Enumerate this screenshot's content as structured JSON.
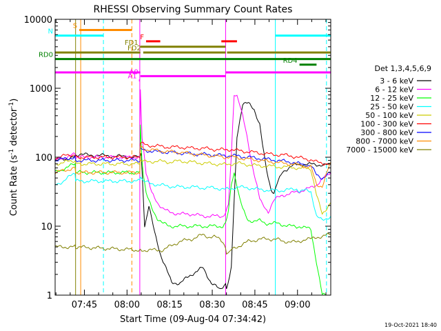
{
  "chart_data": {
    "type": "line",
    "title": "RHESSI Observing Summary Count Rates",
    "xlabel": "Start Time (09-Aug-04 07:34:42)",
    "ylabel_main": "Count Rate (s",
    "ylabel_exp1": "-1",
    "ylabel_mid": " detector",
    "ylabel_exp2": "-1",
    "ylabel_end": ")",
    "x_unit": "minutes after 07:34:42",
    "xlim": [
      0,
      97
    ],
    "ylim": [
      1,
      10000
    ],
    "y_scale": "log",
    "x_ticks": [
      {
        "x": 10.3,
        "label": "07:45"
      },
      {
        "x": 25.3,
        "label": "08:00"
      },
      {
        "x": 40.3,
        "label": "08:15"
      },
      {
        "x": 55.3,
        "label": "08:30"
      },
      {
        "x": 70.3,
        "label": "08:45"
      },
      {
        "x": 85.3,
        "label": "09:00"
      }
    ],
    "y_ticks": [
      {
        "y": 1,
        "label": "1"
      },
      {
        "y": 10,
        "label": "10"
      },
      {
        "y": 100,
        "label": "100"
      },
      {
        "y": 1000,
        "label": "1000"
      },
      {
        "y": 10000,
        "label": "10000"
      }
    ],
    "legend_title": "Det 1,3,4,5,6,9",
    "legend_placement": "right",
    "series": [
      {
        "name": "3 - 6 keV",
        "color": "#000000",
        "x": [
          0,
          7,
          7.2,
          30,
          30.3,
          31.5,
          33,
          35,
          37,
          39,
          41,
          44,
          48,
          52,
          55,
          58,
          60,
          60.3,
          62,
          64,
          66,
          68,
          70,
          72,
          73,
          74,
          75,
          76,
          77,
          77.5,
          78,
          80,
          83,
          86,
          88,
          90,
          92,
          95,
          97
        ],
        "values": [
          90,
          100,
          110,
          100,
          110,
          10,
          20,
          8,
          4,
          2.5,
          1.5,
          1.5,
          2,
          2.5,
          1.5,
          1.2,
          1.5,
          1.2,
          2.5,
          200,
          600,
          600,
          500,
          300,
          150,
          80,
          50,
          35,
          30,
          35,
          40,
          60,
          75,
          78,
          80,
          79,
          78,
          77,
          78
        ]
      },
      {
        "name": "6 - 12 keV",
        "color": "#ff00ff",
        "x": [
          0,
          7,
          7.2,
          29.8,
          30,
          30.6,
          31.2,
          32,
          34,
          36,
          38,
          40,
          44,
          48,
          52,
          56,
          59,
          60,
          61,
          62,
          63,
          64,
          65,
          66,
          67,
          68,
          69,
          70,
          71,
          72,
          73,
          74,
          75,
          76,
          77,
          80,
          83,
          86,
          88,
          90,
          92,
          95,
          97
        ],
        "values": [
          90,
          110,
          100,
          100,
          1000,
          200,
          120,
          60,
          30,
          22,
          18,
          16,
          15,
          15,
          14,
          14,
          14,
          16,
          20,
          100,
          800,
          800,
          600,
          400,
          250,
          150,
          90,
          60,
          40,
          25,
          20,
          18,
          16,
          20,
          24,
          28,
          30,
          32,
          34,
          36,
          40,
          52,
          60
        ]
      },
      {
        "name": "12 - 25 keV",
        "color": "#00ff00",
        "x": [
          0,
          7,
          7.2,
          29.8,
          30,
          30.5,
          31,
          32,
          34,
          36,
          38,
          40,
          44,
          48,
          52,
          56,
          59,
          60,
          61,
          62,
          63,
          64,
          65,
          66,
          67,
          68,
          70,
          72,
          74,
          76,
          78,
          80,
          83,
          85,
          86,
          88,
          90,
          92,
          94,
          97
        ],
        "values": [
          60,
          80,
          60,
          60,
          300,
          100,
          60,
          30,
          18,
          13,
          11,
          10,
          10,
          10,
          10,
          10,
          10,
          11,
          16,
          40,
          60,
          40,
          25,
          18,
          14,
          12,
          12,
          12,
          11,
          11,
          11,
          10.5,
          10,
          9.8,
          10,
          9.5,
          9,
          3,
          1,
          1
        ]
      },
      {
        "name": "25 - 50 keV",
        "color": "#00ffff",
        "x": [
          0,
          3,
          7,
          7.2,
          29.8,
          30,
          31,
          33,
          36,
          40,
          44,
          48,
          52,
          56,
          60,
          62,
          64,
          68,
          72,
          76,
          80,
          83,
          85,
          86,
          88,
          90,
          92,
          94,
          97
        ],
        "values": [
          40,
          45,
          60,
          45,
          45,
          55,
          45,
          42,
          40,
          38,
          37,
          37,
          36,
          36,
          34,
          35,
          37,
          36,
          34,
          33,
          33,
          34,
          35,
          32,
          33,
          32,
          14,
          12,
          14
        ]
      },
      {
        "name": "50 - 100 keV",
        "color": "#cccc00",
        "x": [
          0,
          7,
          7.2,
          29.8,
          30,
          32,
          36,
          40,
          44,
          48,
          52,
          56,
          60,
          62,
          64,
          68,
          72,
          76,
          80,
          83,
          85,
          86,
          88,
          90,
          92,
          94,
          97
        ],
        "values": [
          80,
          90,
          80,
          80,
          90,
          85,
          88,
          85,
          88,
          85,
          82,
          80,
          78,
          80,
          82,
          78,
          75,
          74,
          72,
          72,
          70,
          68,
          70,
          68,
          28,
          15,
          22
        ]
      },
      {
        "name": "100 - 300 keV",
        "color": "#ff0000",
        "x": [
          0,
          7,
          7.2,
          29.8,
          30,
          32,
          36,
          40,
          44,
          48,
          52,
          56,
          60,
          62,
          64,
          68,
          72,
          76,
          80,
          83,
          85,
          86,
          88,
          90,
          92,
          94,
          97
        ],
        "values": [
          100,
          110,
          100,
          100,
          160,
          150,
          145,
          140,
          140,
          135,
          135,
          130,
          128,
          130,
          125,
          120,
          115,
          110,
          108,
          105,
          100,
          98,
          95,
          92,
          85,
          82,
          80
        ]
      },
      {
        "name": "300 - 800 keV",
        "color": "#0000ff",
        "x": [
          0,
          7,
          7.2,
          29.8,
          30,
          32,
          36,
          40,
          44,
          48,
          52,
          56,
          60,
          62,
          64,
          68,
          72,
          76,
          80,
          83,
          85,
          86,
          88,
          90,
          92,
          94,
          97
        ],
        "values": [
          90,
          100,
          90,
          90,
          130,
          125,
          120,
          118,
          115,
          112,
          110,
          108,
          105,
          106,
          104,
          100,
          96,
          92,
          88,
          85,
          82,
          80,
          78,
          76,
          55,
          50,
          60
        ]
      },
      {
        "name": "800 - 7000 keV",
        "color": "#ff8c00",
        "x": [
          0,
          7,
          7.2,
          29.8,
          30,
          32,
          36,
          40,
          44,
          48,
          52,
          56,
          60,
          62,
          64,
          68,
          72,
          76,
          80,
          83,
          85,
          86,
          88,
          90,
          92,
          94,
          97
        ],
        "values": [
          60,
          70,
          60,
          60,
          140,
          130,
          125,
          120,
          118,
          112,
          108,
          104,
          100,
          102,
          98,
          94,
          90,
          86,
          82,
          80,
          78,
          76,
          74,
          72,
          40,
          38,
          85
        ]
      },
      {
        "name": "7000 - 15000 keV",
        "color": "#808000",
        "x": [
          0,
          7,
          7.2,
          29.8,
          30,
          34,
          38,
          40,
          42,
          44,
          48,
          52,
          54,
          56,
          58,
          59,
          60,
          60.3,
          62,
          64,
          66,
          68,
          70,
          72,
          74,
          76,
          78,
          80,
          83,
          85,
          86,
          88,
          90,
          92,
          94,
          96,
          97
        ],
        "values": [
          5,
          5,
          5,
          4.5,
          4.5,
          4.5,
          4.5,
          5,
          5.5,
          6,
          6.5,
          7.5,
          7,
          7,
          6.5,
          6,
          5,
          4,
          4.5,
          5,
          5.5,
          6,
          6.2,
          6.5,
          6.5,
          6.5,
          6.5,
          6,
          6,
          5.8,
          6,
          6.5,
          6.5,
          7,
          7,
          7.5,
          7.5
        ]
      }
    ],
    "state_bars": [
      {
        "label": "S",
        "color": "#ff8c00",
        "x_start": 8.5,
        "x_end": 27,
        "y": 7000,
        "show_label": true
      },
      {
        "label": "N",
        "color": "#00ffff",
        "x_start": 0,
        "x_end": 17,
        "y": 5800,
        "show_label": true
      },
      {
        "label": "N",
        "color": "#00ffff",
        "x_start": 77.5,
        "x_end": 97,
        "y": 5800,
        "show_label": false
      },
      {
        "label": "F",
        "color": "#ff0000",
        "x_start": 32,
        "x_end": 37,
        "y": 4800,
        "show_label": true
      },
      {
        "label": "F",
        "color": "#ff0000",
        "x_start": 58.5,
        "x_end": 64,
        "y": 4800,
        "show_label": false
      },
      {
        "label": "FD1",
        "color": "#808000",
        "x_start": 30,
        "x_end": 60,
        "y": 4000,
        "show_label": true
      },
      {
        "label": "FD2",
        "color": "#808000",
        "x_start": 0,
        "x_end": 30,
        "y": 3300,
        "show_label": false
      },
      {
        "label": "FD2",
        "color": "#808000",
        "x_start": 31,
        "x_end": 60,
        "y": 3300,
        "show_label": true
      },
      {
        "label": "FD2",
        "color": "#808000",
        "x_start": 60.5,
        "x_end": 97,
        "y": 3300,
        "show_label": false
      },
      {
        "label": "RD0",
        "color": "#008000",
        "x_start": 0,
        "x_end": 97,
        "y": 2650,
        "show_label": true
      },
      {
        "label": "RD4",
        "color": "#008000",
        "x_start": 86,
        "x_end": 92,
        "y": 2200,
        "show_label": true
      },
      {
        "label": "A1",
        "color": "#ff00ff",
        "x_start": 0,
        "x_end": 30,
        "y": 1700,
        "show_label": false
      },
      {
        "label": "A1",
        "color": "#ff00ff",
        "x_start": 60,
        "x_end": 97,
        "y": 1700,
        "show_label": false
      },
      {
        "label": "A0",
        "color": "#ff00ff",
        "x_start": 30,
        "x_end": 60,
        "y": 1500,
        "show_label": true
      },
      {
        "label": "A1",
        "color": "#ff00ff",
        "x_start": 29.5,
        "x_end": 29.8,
        "y": 1300,
        "show_label": true
      }
    ],
    "vertical_markers": [
      {
        "x": 7.2,
        "color": "#808000",
        "style": "solid"
      },
      {
        "x": 9.0,
        "color": "#ff8c00",
        "style": "solid"
      },
      {
        "x": 17.0,
        "color": "#00ffff",
        "style": "dashed"
      },
      {
        "x": 27.0,
        "color": "#ff8c00",
        "style": "dashed"
      },
      {
        "x": 29.8,
        "color": "#ff00ff",
        "style": "solid"
      },
      {
        "x": 60.0,
        "color": "#ff00ff",
        "style": "solid"
      },
      {
        "x": 77.5,
        "color": "#00ffff",
        "style": "solid"
      },
      {
        "x": 95.5,
        "color": "#00ffff",
        "style": "dashed"
      }
    ]
  },
  "footer": {
    "date_stamp": "19-Oct-2021 18:40"
  },
  "colors": {
    "background": "#ffffff",
    "axes": "#000000"
  }
}
